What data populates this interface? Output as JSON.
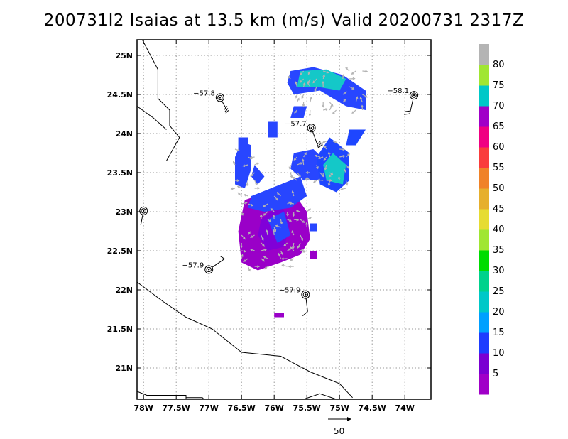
{
  "title": "200731I2 Isaias at 13.5 km (m/s) Valid 20200731 2317Z",
  "axes": {
    "x_ticks": [
      "78W",
      "77.5W",
      "77W",
      "76.5W",
      "76W",
      "75.5W",
      "75W",
      "74.5W",
      "74W"
    ],
    "y_ticks": [
      "25N",
      "24.5N",
      "24N",
      "23.5N",
      "23N",
      "22.5N",
      "22N",
      "21.5N",
      "21N"
    ],
    "lon_range": [
      -78.1,
      -73.6
    ],
    "lat_range": [
      20.6,
      25.2
    ],
    "grid": true
  },
  "colorbar": {
    "labels": [
      "5",
      "10",
      "15",
      "20",
      "25",
      "30",
      "35",
      "40",
      "45",
      "50",
      "55",
      "60",
      "65",
      "70",
      "75",
      "80"
    ],
    "colors": [
      "#a000c8",
      "#7a00d2",
      "#1e3cff",
      "#00a0ff",
      "#00c8c8",
      "#00d28c",
      "#00dc00",
      "#a0e632",
      "#e6dc32",
      "#e6af2d",
      "#f08228",
      "#fa3c3c",
      "#f00082",
      "#a000c8",
      "#00c8c8",
      "#a0e632",
      "#b4b4b4"
    ]
  },
  "stations": [
    {
      "label": "−57.8",
      "lon": -76.83,
      "lat": 24.46
    },
    {
      "label": "−58.1",
      "lon": -73.86,
      "lat": 24.49
    },
    {
      "label": "−57.7",
      "lon": -75.43,
      "lat": 24.07
    },
    {
      "label": "−57.9",
      "lon": -77.0,
      "lat": 22.26
    },
    {
      "label": "−57.9",
      "lon": -75.52,
      "lat": 21.94
    },
    {
      "label": "",
      "lon": -78.0,
      "lat": 23.01
    }
  ],
  "reference_vector": {
    "label": "50"
  }
}
